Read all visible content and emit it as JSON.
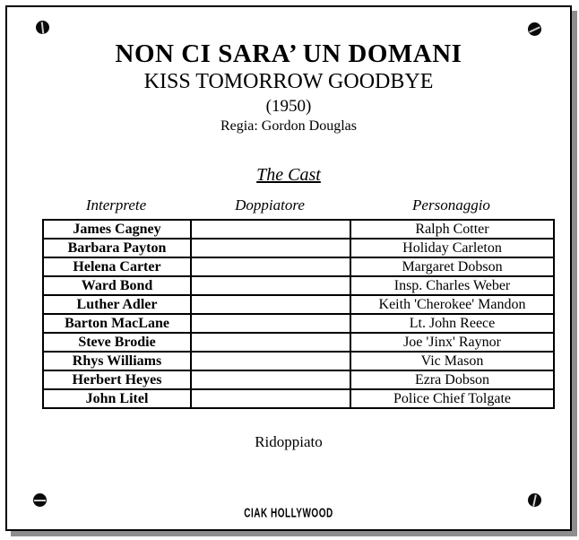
{
  "page": {
    "title": "NON CI SARA’ UN DOMANI",
    "original_title": "KISS TOMORROW GOODBYE",
    "year": "(1950)",
    "director": "Regia: Gordon Douglas",
    "cast_heading": "The Cast",
    "footer_note": "Ridoppiato",
    "logo": "CIAK HOLLYWOOD"
  },
  "cast_table": {
    "columns": [
      "Interprete",
      "Doppiatore",
      "Personaggio"
    ],
    "rows": [
      {
        "interprete": "James Cagney",
        "doppiatore": "",
        "personaggio": "Ralph Cotter"
      },
      {
        "interprete": "Barbara Payton",
        "doppiatore": "",
        "personaggio": "Holiday Carleton"
      },
      {
        "interprete": "Helena Carter",
        "doppiatore": "",
        "personaggio": "Margaret Dobson"
      },
      {
        "interprete": "Ward Bond",
        "doppiatore": "",
        "personaggio": "Insp. Charles Weber"
      },
      {
        "interprete": "Luther Adler",
        "doppiatore": "",
        "personaggio": "Keith 'Cherokee' Mandon"
      },
      {
        "interprete": "Barton MacLane",
        "doppiatore": "",
        "personaggio": "Lt. John Reece"
      },
      {
        "interprete": "Steve Brodie",
        "doppiatore": "",
        "personaggio": "Joe 'Jinx' Raynor"
      },
      {
        "interprete": "Rhys Williams",
        "doppiatore": "",
        "personaggio": "Vic Mason"
      },
      {
        "interprete": "Herbert Heyes",
        "doppiatore": "",
        "personaggio": "Ezra Dobson"
      },
      {
        "interprete": "John Litel",
        "doppiatore": "",
        "personaggio": "Police Chief Tolgate"
      }
    ]
  },
  "colors": {
    "text": "#000000",
    "border": "#000000",
    "shadow": "#8e8e8e",
    "background": "#ffffff",
    "screw": "#0a0a0a"
  }
}
